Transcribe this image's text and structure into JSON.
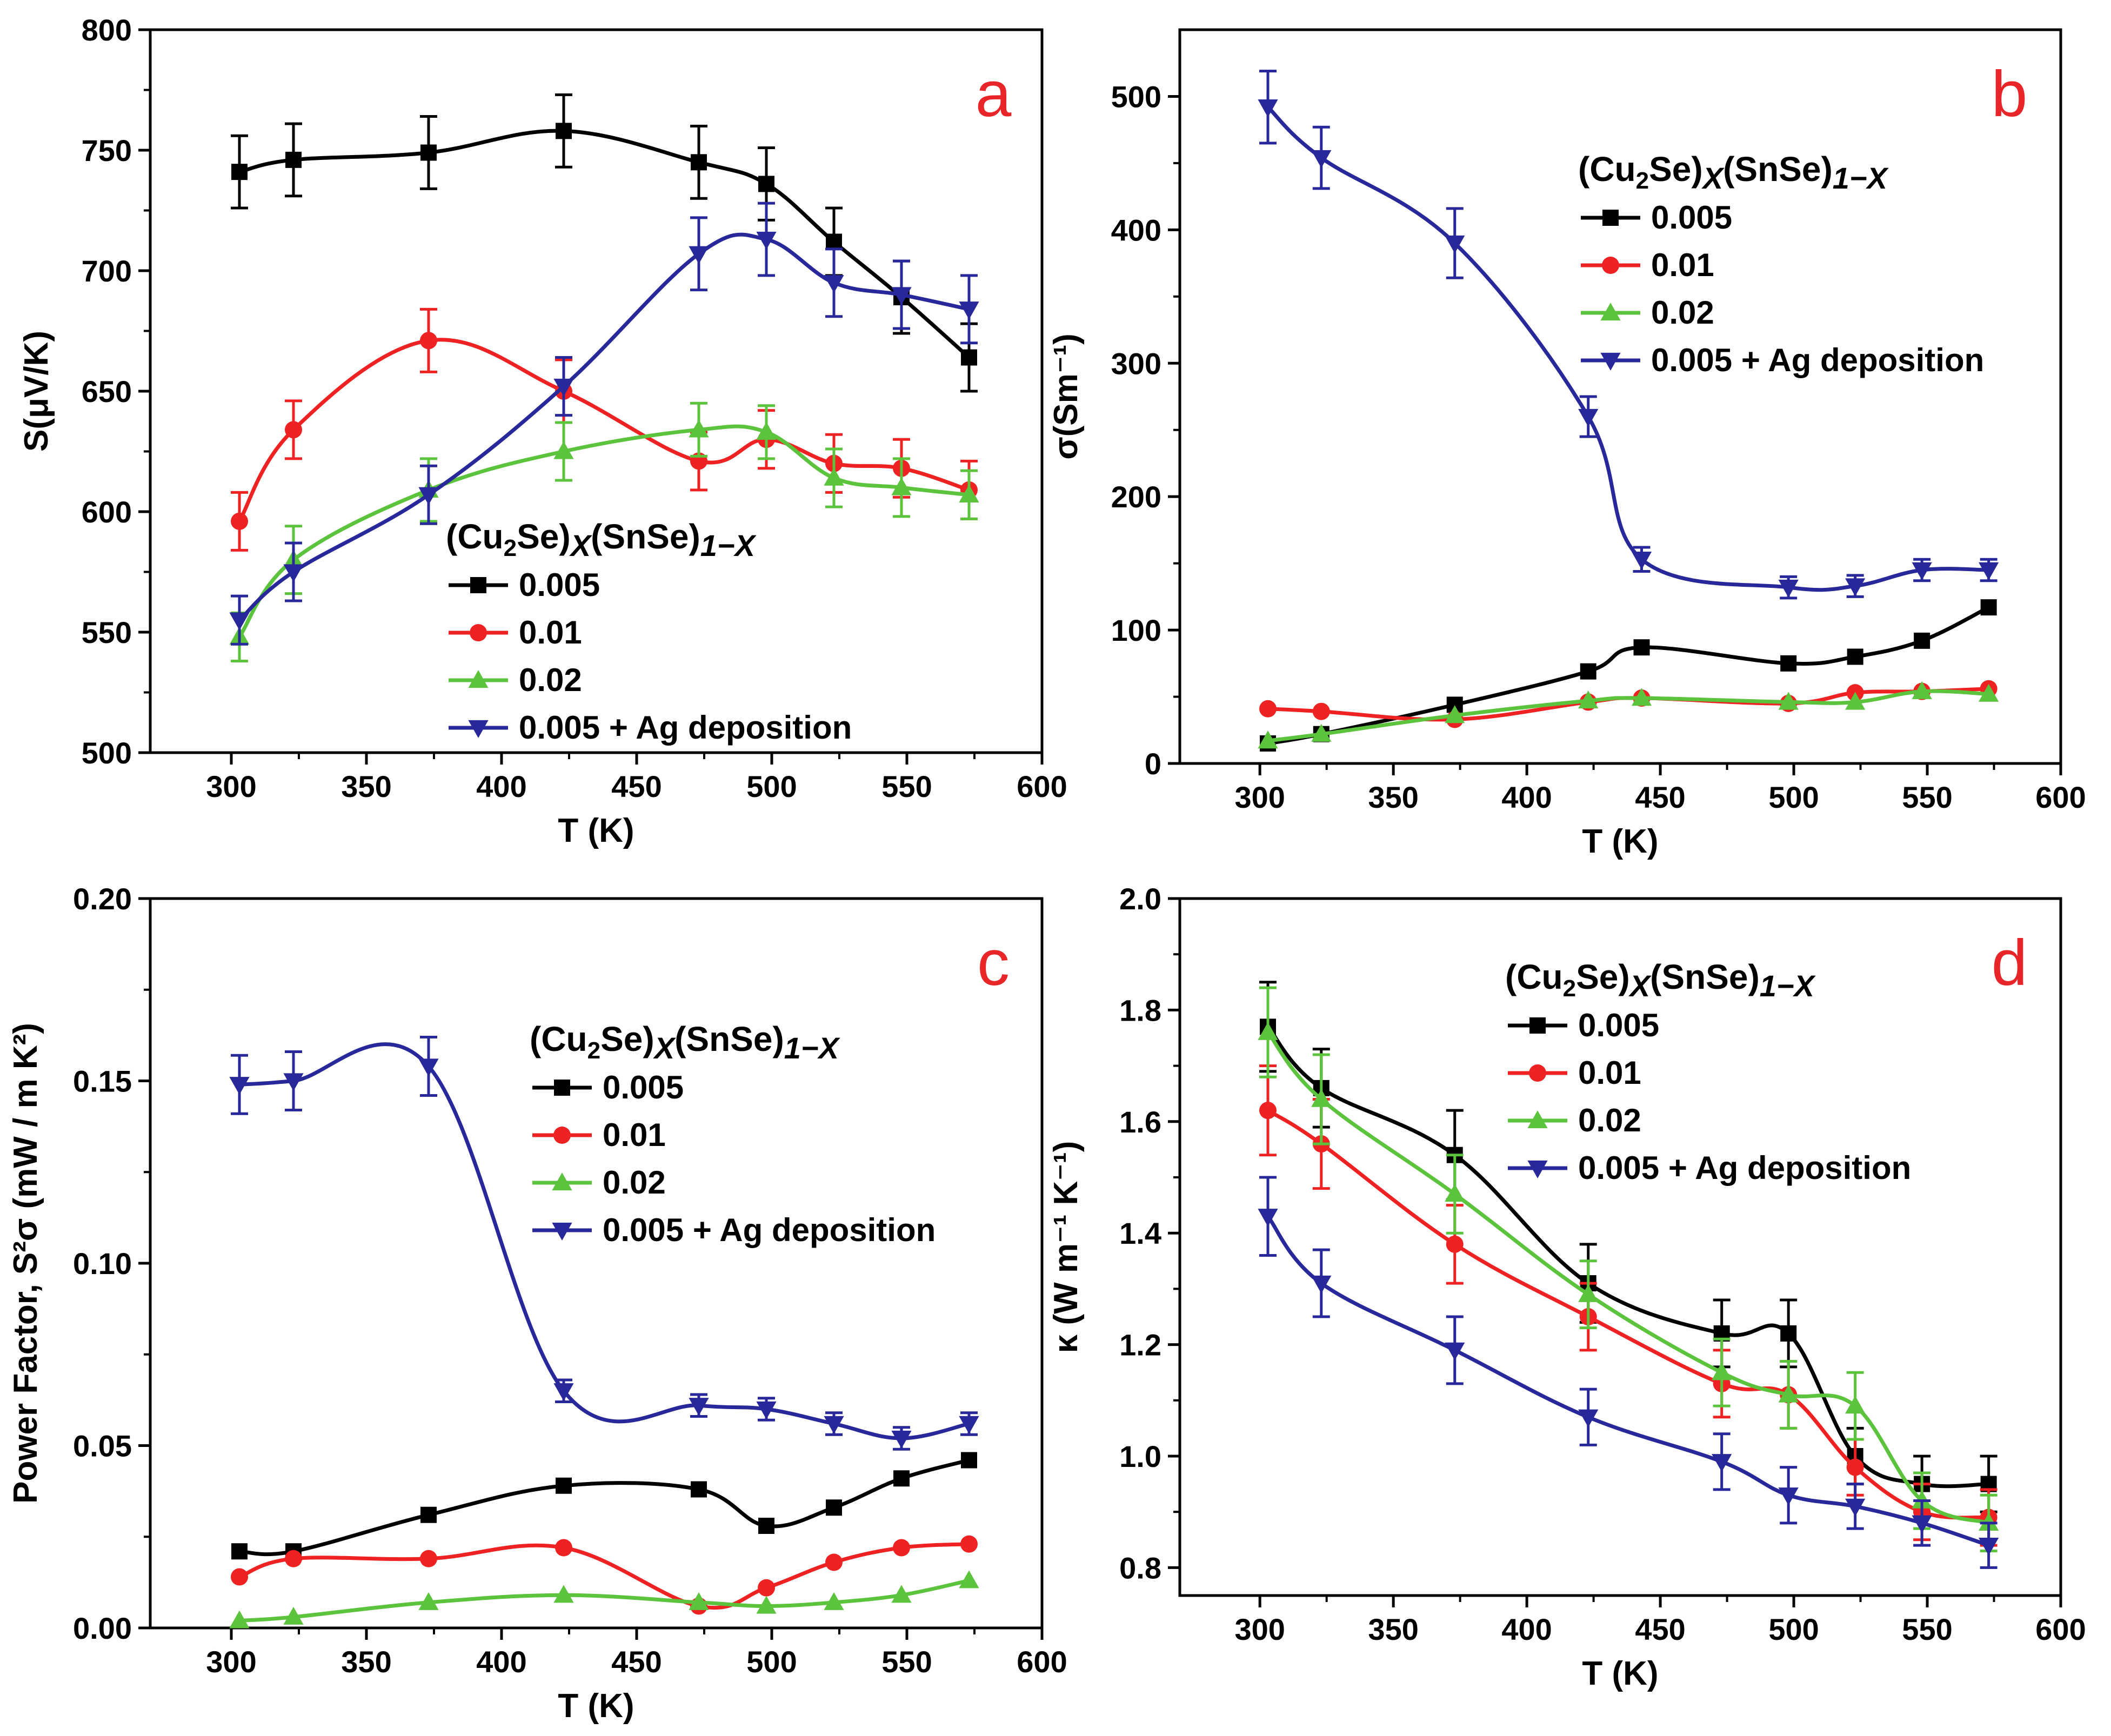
{
  "colors": {
    "black": "#000000",
    "red": "#ee2222",
    "green": "#5cc33d",
    "blue": "#28289a",
    "panel_letter": "#e8262a"
  },
  "legend": {
    "formula": {
      "base1": "(Cu",
      "sub1": "2",
      "base2": "Se)",
      "sub2": "X",
      "base3": "(SnSe)",
      "sub3": "1−X"
    },
    "entries": [
      "0.005",
      "0.01",
      "0.02",
      "0.005 + Ag deposition"
    ]
  },
  "chart_data": [
    {
      "panel": "a",
      "type": "line",
      "xlabel": "T (K)",
      "ylabel": "S(μV/K)",
      "xlim": [
        270,
        600
      ],
      "ylim": [
        500,
        800
      ],
      "xticks": [
        300,
        350,
        400,
        450,
        500,
        550,
        600
      ],
      "yticks": [
        500,
        550,
        600,
        650,
        700,
        750,
        800
      ],
      "ytick_labels": [
        "500",
        "550",
        "600",
        "650",
        "700",
        "750",
        "800"
      ],
      "series": [
        {
          "name": "0.005",
          "x": [
            303,
            323,
            373,
            423,
            473,
            498,
            523,
            548,
            573
          ],
          "values": [
            741,
            746,
            749,
            758,
            745,
            736,
            712,
            689,
            664
          ],
          "errors": [
            15,
            15,
            15,
            15,
            15,
            15,
            14,
            15,
            14
          ]
        },
        {
          "name": "0.01",
          "x": [
            303,
            323,
            373,
            423,
            473,
            498,
            523,
            548,
            573
          ],
          "values": [
            596,
            634,
            671,
            650,
            621,
            630,
            620,
            618,
            609
          ],
          "errors": [
            12,
            12,
            13,
            13,
            12,
            12,
            12,
            12,
            12
          ]
        },
        {
          "name": "0.02",
          "x": [
            303,
            323,
            373,
            423,
            473,
            498,
            523,
            548,
            573
          ],
          "values": [
            548,
            580,
            609,
            625,
            634,
            633,
            614,
            610,
            607
          ],
          "errors": [
            10,
            14,
            13,
            12,
            11,
            11,
            12,
            12,
            10
          ]
        },
        {
          "name": "0.005 + Ag deposition",
          "x": [
            303,
            323,
            373,
            423,
            473,
            498,
            523,
            548,
            573
          ],
          "values": [
            555,
            575,
            607,
            652,
            707,
            713,
            695,
            690,
            684
          ],
          "errors": [
            10,
            12,
            12,
            12,
            15,
            15,
            14,
            14,
            14
          ]
        }
      ]
    },
    {
      "panel": "b",
      "type": "line",
      "xlabel": "T (K)",
      "ylabel": "σ(Sm⁻¹)",
      "xlim": [
        270,
        600
      ],
      "ylim": [
        0,
        550
      ],
      "xticks": [
        300,
        350,
        400,
        450,
        500,
        550,
        600
      ],
      "yticks": [
        0,
        100,
        200,
        300,
        400,
        500
      ],
      "ytick_labels": [
        "0",
        "100",
        "200",
        "300",
        "400",
        "500"
      ],
      "series": [
        {
          "name": "0.005",
          "x": [
            303,
            323,
            373,
            423,
            443,
            498,
            523,
            548,
            573
          ],
          "values": [
            15,
            22,
            44,
            69,
            87,
            75,
            80,
            92,
            117
          ],
          "errors": [
            0,
            0,
            0,
            0,
            0,
            0,
            0,
            0,
            0
          ]
        },
        {
          "name": "0.01",
          "x": [
            303,
            323,
            373,
            423,
            443,
            498,
            523,
            548,
            573
          ],
          "values": [
            41,
            39,
            33,
            46,
            49,
            45,
            53,
            54,
            56
          ],
          "errors": [
            0,
            0,
            0,
            0,
            0,
            0,
            0,
            0,
            0
          ]
        },
        {
          "name": "0.02",
          "x": [
            303,
            323,
            373,
            423,
            443,
            498,
            523,
            548,
            573
          ],
          "values": [
            17,
            22,
            36,
            47,
            49,
            46,
            46,
            54,
            52
          ],
          "errors": [
            0,
            0,
            0,
            0,
            0,
            0,
            0,
            0,
            0
          ]
        },
        {
          "name": "0.005 + Ag deposition",
          "x": [
            303,
            323,
            373,
            423,
            443,
            498,
            523,
            548,
            573
          ],
          "values": [
            492,
            454,
            390,
            260,
            153,
            132,
            133,
            145,
            145
          ],
          "errors": [
            27,
            23,
            26,
            15,
            9,
            8,
            8,
            8,
            8
          ]
        }
      ]
    },
    {
      "panel": "c",
      "type": "line",
      "xlabel": "T (K)",
      "ylabel": "Power Factor, S²σ (mW / m K²)",
      "xlim": [
        270,
        600
      ],
      "ylim": [
        0,
        0.2
      ],
      "xticks": [
        300,
        350,
        400,
        450,
        500,
        550,
        600
      ],
      "yticks": [
        0,
        0.05,
        0.1,
        0.15,
        0.2
      ],
      "ytick_labels": [
        "0.00",
        "0.05",
        "0.10",
        "0.15",
        "0.20"
      ],
      "series": [
        {
          "name": "0.005",
          "x": [
            303,
            323,
            373,
            423,
            473,
            498,
            523,
            548,
            573
          ],
          "values": [
            0.021,
            0.021,
            0.031,
            0.039,
            0.038,
            0.028,
            0.033,
            0.041,
            0.046
          ],
          "errors": [
            0,
            0,
            0,
            0,
            0,
            0,
            0,
            0,
            0
          ]
        },
        {
          "name": "0.01",
          "x": [
            303,
            323,
            373,
            423,
            473,
            498,
            523,
            548,
            573
          ],
          "values": [
            0.014,
            0.019,
            0.019,
            0.022,
            0.006,
            0.011,
            0.018,
            0.022,
            0.023
          ],
          "errors": [
            0,
            0,
            0,
            0,
            0,
            0,
            0,
            0,
            0
          ]
        },
        {
          "name": "0.02",
          "x": [
            303,
            323,
            373,
            423,
            473,
            498,
            523,
            548,
            573
          ],
          "values": [
            0.002,
            0.003,
            0.007,
            0.009,
            0.007,
            0.006,
            0.007,
            0.009,
            0.013
          ],
          "errors": [
            0,
            0,
            0,
            0,
            0,
            0,
            0,
            0,
            0
          ]
        },
        {
          "name": "0.005 + Ag deposition",
          "x": [
            303,
            323,
            373,
            423,
            473,
            498,
            523,
            548,
            573
          ],
          "values": [
            0.149,
            0.15,
            0.154,
            0.065,
            0.061,
            0.06,
            0.056,
            0.052,
            0.056
          ],
          "errors": [
            0.008,
            0.008,
            0.008,
            0.003,
            0.003,
            0.003,
            0.003,
            0.003,
            0.003
          ]
        }
      ]
    },
    {
      "panel": "d",
      "type": "line",
      "xlabel": "T (K)",
      "ylabel": "κ (W m⁻¹ K⁻¹)",
      "xlim": [
        270,
        600
      ],
      "ylim": [
        0.75,
        2.0
      ],
      "xticks": [
        300,
        350,
        400,
        450,
        500,
        550,
        600
      ],
      "yticks": [
        0.8,
        1.0,
        1.2,
        1.4,
        1.6,
        1.8,
        2.0
      ],
      "ytick_labels": [
        "0.8",
        "1.0",
        "1.2",
        "1.4",
        "1.6",
        "1.8",
        "2.0"
      ],
      "series": [
        {
          "name": "0.005",
          "x": [
            303,
            323,
            373,
            423,
            473,
            498,
            523,
            548,
            573
          ],
          "values": [
            1.77,
            1.66,
            1.54,
            1.31,
            1.22,
            1.22,
            1.0,
            0.95,
            0.95
          ],
          "errors": [
            0.08,
            0.07,
            0.08,
            0.07,
            0.06,
            0.06,
            0.05,
            0.05,
            0.05
          ]
        },
        {
          "name": "0.01",
          "x": [
            303,
            323,
            373,
            423,
            473,
            498,
            523,
            548,
            573
          ],
          "values": [
            1.62,
            1.56,
            1.38,
            1.25,
            1.13,
            1.11,
            0.98,
            0.9,
            0.89
          ],
          "errors": [
            0.08,
            0.08,
            0.07,
            0.06,
            0.06,
            0.06,
            0.05,
            0.05,
            0.05
          ]
        },
        {
          "name": "0.02",
          "x": [
            303,
            323,
            373,
            423,
            473,
            498,
            523,
            548,
            573
          ],
          "values": [
            1.76,
            1.64,
            1.47,
            1.29,
            1.15,
            1.11,
            1.09,
            0.92,
            0.88
          ],
          "errors": [
            0.08,
            0.08,
            0.07,
            0.06,
            0.06,
            0.06,
            0.06,
            0.05,
            0.05
          ]
        },
        {
          "name": "0.005 + Ag deposition",
          "x": [
            303,
            323,
            373,
            423,
            473,
            498,
            523,
            548,
            573
          ],
          "values": [
            1.43,
            1.31,
            1.19,
            1.07,
            0.99,
            0.93,
            0.91,
            0.88,
            0.84
          ],
          "errors": [
            0.07,
            0.06,
            0.06,
            0.05,
            0.05,
            0.05,
            0.04,
            0.04,
            0.04
          ]
        }
      ]
    }
  ]
}
